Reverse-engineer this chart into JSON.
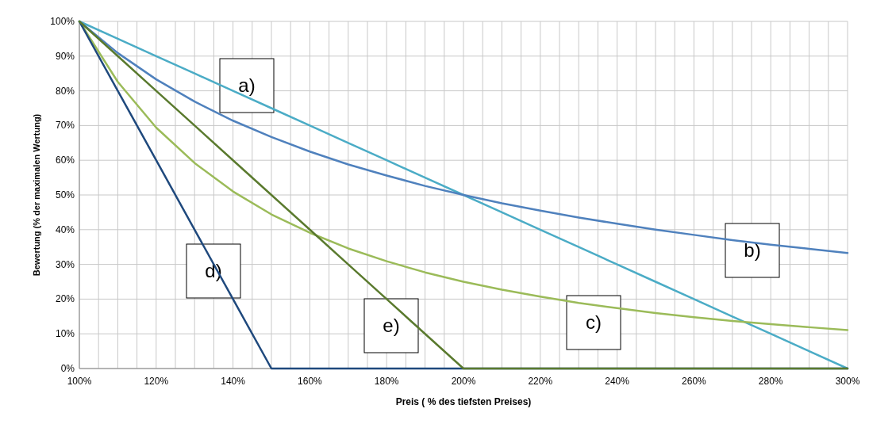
{
  "chart_data": {
    "type": "line",
    "xlabel": "Preis ( % des tiefsten Preises)",
    "ylabel": "Bewertung (% der maximalen Wertung)",
    "x": [
      100,
      110,
      120,
      130,
      140,
      150,
      160,
      170,
      180,
      190,
      200,
      210,
      220,
      230,
      240,
      250,
      260,
      270,
      280,
      290,
      300
    ],
    "series": [
      {
        "name": "a)",
        "color": "#4bacc6",
        "values": [
          100,
          95,
          90,
          85,
          80,
          75,
          70,
          65,
          60,
          55,
          50,
          45,
          40,
          35,
          30,
          25,
          20,
          15,
          10,
          5,
          0
        ]
      },
      {
        "name": "b)",
        "color": "#4f81bd",
        "values": [
          100,
          90.9,
          83.3,
          76.9,
          71.4,
          66.7,
          62.5,
          58.8,
          55.6,
          52.6,
          50,
          47.6,
          45.5,
          43.5,
          41.7,
          40,
          38.5,
          37,
          35.7,
          34.5,
          33.3
        ]
      },
      {
        "name": "c)",
        "color": "#9bbb59",
        "values": [
          100,
          82.6,
          69.4,
          59.2,
          51,
          44.4,
          39.1,
          34.6,
          30.9,
          27.7,
          25,
          22.7,
          20.7,
          18.9,
          17.4,
          16,
          14.8,
          13.7,
          12.8,
          11.9,
          11.1
        ]
      },
      {
        "name": "d)",
        "color": "#1f497d",
        "values": [
          100,
          80,
          60,
          40,
          20,
          0,
          0,
          0,
          0,
          0,
          0,
          0,
          0,
          0,
          0,
          0,
          0,
          0,
          0,
          0,
          0
        ]
      },
      {
        "name": "e)",
        "color": "#5a7a2e",
        "values": [
          100,
          90,
          80,
          70,
          60,
          50,
          40,
          30,
          20,
          10,
          0,
          0,
          0,
          0,
          0,
          0,
          0,
          0,
          0,
          0,
          0
        ]
      }
    ],
    "xlim": [
      100,
      300
    ],
    "xticks": [
      {
        "value": 100,
        "label": "100%"
      },
      {
        "value": 105,
        "label": null
      },
      {
        "value": 110,
        "label": null
      },
      {
        "value": 115,
        "label": null
      },
      {
        "value": 120,
        "label": "120%"
      },
      {
        "value": 125,
        "label": null
      },
      {
        "value": 130,
        "label": null
      },
      {
        "value": 135,
        "label": null
      },
      {
        "value": 140,
        "label": "140%"
      },
      {
        "value": 145,
        "label": null
      },
      {
        "value": 150,
        "label": null
      },
      {
        "value": 155,
        "label": null
      },
      {
        "value": 160,
        "label": "160%"
      },
      {
        "value": 165,
        "label": null
      },
      {
        "value": 170,
        "label": null
      },
      {
        "value": 175,
        "label": null
      },
      {
        "value": 180,
        "label": "180%"
      },
      {
        "value": 185,
        "label": null
      },
      {
        "value": 190,
        "label": null
      },
      {
        "value": 195,
        "label": null
      },
      {
        "value": 200,
        "label": "200%"
      },
      {
        "value": 205,
        "label": null
      },
      {
        "value": 210,
        "label": null
      },
      {
        "value": 215,
        "label": null
      },
      {
        "value": 220,
        "label": "220%"
      },
      {
        "value": 225,
        "label": null
      },
      {
        "value": 230,
        "label": null
      },
      {
        "value": 235,
        "label": null
      },
      {
        "value": 240,
        "label": "240%"
      },
      {
        "value": 245,
        "label": null
      },
      {
        "value": 250,
        "label": null
      },
      {
        "value": 255,
        "label": null
      },
      {
        "value": 260,
        "label": "260%"
      },
      {
        "value": 265,
        "label": null
      },
      {
        "value": 270,
        "label": null
      },
      {
        "value": 275,
        "label": null
      },
      {
        "value": 280,
        "label": "280%"
      },
      {
        "value": 285,
        "label": null
      },
      {
        "value": 290,
        "label": null
      },
      {
        "value": 295,
        "label": null
      },
      {
        "value": 300,
        "label": "300%"
      }
    ],
    "ylim": [
      0,
      100
    ],
    "yticks": [
      {
        "value": 0,
        "label": "0%"
      },
      {
        "value": 10,
        "label": "10%"
      },
      {
        "value": 20,
        "label": "20%"
      },
      {
        "value": 30,
        "label": "30%"
      },
      {
        "value": 40,
        "label": "40%"
      },
      {
        "value": 50,
        "label": "50%"
      },
      {
        "value": 60,
        "label": "60%"
      },
      {
        "value": 70,
        "label": "70%"
      },
      {
        "value": 80,
        "label": "80%"
      },
      {
        "value": 90,
        "label": "90%"
      },
      {
        "value": 100,
        "label": "100%"
      }
    ],
    "grid": true,
    "marker": "none",
    "line_style": "solid"
  }
}
